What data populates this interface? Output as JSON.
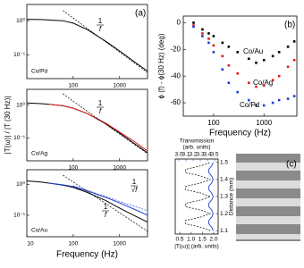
{
  "chart_data": [
    {
      "type": "line",
      "panel_label": "(a)",
      "ylabel": "|T(ω)| / |T (30 Hz)|",
      "xlog": true,
      "ylog": true,
      "xlim": [
        10,
        4000
      ],
      "ylim": [
        0.02,
        3
      ],
      "xticks": [
        100,
        1000
      ],
      "yticks": [
        {
          "value": 1,
          "label": "10⁰"
        },
        {
          "value": 0.1,
          "label": "10⁻¹"
        }
      ],
      "sample_label": "Co/Pd",
      "sample_color": "#000000",
      "fractions": [
        {
          "numerator": "1",
          "denominator": "f"
        }
      ],
      "x": [
        10,
        20,
        30,
        60,
        100,
        200,
        500,
        1000,
        2000,
        4000
      ],
      "series": [
        {
          "color": "#000000",
          "dashed": false,
          "values": [
            1.1,
            1.08,
            1.05,
            1,
            0.85,
            0.55,
            0.25,
            0.13,
            0.065,
            0.033
          ]
        },
        {
          "color": "#000000",
          "dashed": true,
          "values": [
            null,
            null,
            null,
            2,
            1.2,
            0.6,
            0.24,
            0.12,
            0.06,
            0.03
          ]
        }
      ]
    },
    {
      "type": "line",
      "xlog": true,
      "ylog": true,
      "xlim": [
        10,
        4000
      ],
      "ylim": [
        0.02,
        3
      ],
      "xticks": [
        100,
        1000
      ],
      "yticks": [
        {
          "value": 1,
          "label": "10⁰"
        },
        {
          "value": 0.1,
          "label": "10⁻¹"
        }
      ],
      "sample_label": "Co/Ag",
      "sample_color": "#e41a1c",
      "fractions": [
        {
          "numerator": "1",
          "denominator": "f"
        }
      ],
      "x": [
        10,
        20,
        30,
        60,
        100,
        200,
        500,
        1000,
        2000,
        4000
      ],
      "series": [
        {
          "color": "#000000",
          "dashed": false,
          "values": [
            1.15,
            1.1,
            1.05,
            0.95,
            0.8,
            0.55,
            0.27,
            0.14,
            0.07,
            0.035
          ]
        },
        {
          "color": "#e41a1c",
          "dashed": false,
          "values": [
            null,
            null,
            1.05,
            0.95,
            0.8,
            0.55,
            0.28,
            0.15,
            0.08,
            0.04
          ]
        },
        {
          "color": "#000000",
          "dashed": true,
          "values": [
            null,
            null,
            null,
            2.2,
            1.3,
            0.65,
            0.26,
            0.13,
            0.065,
            0.033
          ]
        }
      ]
    },
    {
      "type": "line",
      "xlabel": "Frequency (Hz)",
      "xlog": true,
      "ylog": true,
      "xlim": [
        10,
        4000
      ],
      "ylim": [
        0.02,
        3
      ],
      "xticks": [
        10,
        100,
        1000
      ],
      "yticks": [
        {
          "value": 1,
          "label": "10⁰"
        },
        {
          "value": 0.1,
          "label": "10⁻¹"
        }
      ],
      "sample_label": "Co/Au",
      "sample_color": "#1f3fd0",
      "fractions": [
        {
          "numerator": "1",
          "denominator": "f"
        },
        {
          "numerator": "1",
          "denominator": "√f"
        }
      ],
      "x": [
        10,
        20,
        30,
        60,
        100,
        200,
        500,
        1000,
        2000,
        4000
      ],
      "series": [
        {
          "color": "#000000",
          "dashed": false,
          "values": [
            1.3,
            1.2,
            1.1,
            0.95,
            0.8,
            0.55,
            0.3,
            0.17,
            0.1,
            0.06
          ]
        },
        {
          "color": "#1f3fd0",
          "dashed": false,
          "values": [
            null,
            null,
            1.1,
            0.97,
            0.85,
            0.62,
            0.38,
            0.25,
            0.16,
            0.1
          ]
        },
        {
          "color": "#1f3fd0",
          "dashed": true,
          "values": [
            null,
            null,
            null,
            null,
            0.9,
            0.64,
            0.4,
            0.28,
            0.2,
            0.14
          ]
        },
        {
          "color": "#000000",
          "dashed": true,
          "values": [
            null,
            null,
            null,
            2,
            1.2,
            0.6,
            0.24,
            0.12,
            0.06,
            0.03
          ]
        }
      ]
    },
    {
      "type": "scatter",
      "panel_label": "(b)",
      "xlabel": "Frequency (Hz)",
      "ylabel": "ϕ (f) - ϕ(30 Hz) (deg)",
      "xlog": true,
      "xlim": [
        25,
        4500
      ],
      "ylim": [
        -70,
        5
      ],
      "xticks": [
        100,
        1000
      ],
      "yticks": [
        0,
        -20,
        -40,
        -60
      ],
      "x": [
        40,
        60,
        80,
        100,
        150,
        200,
        300,
        500,
        700,
        1000,
        1500,
        2000,
        3000,
        4000
      ],
      "series": [
        {
          "name": "Co/Au",
          "color": "#000000",
          "values": [
            0,
            -5,
            -8,
            -10,
            -15,
            -18,
            -22,
            -27,
            -30,
            -28,
            -25,
            -22,
            -18,
            -14
          ]
        },
        {
          "name": "Co/Ag",
          "color": "#e41a1c",
          "values": [
            -2,
            -8,
            -12,
            -17,
            -25,
            -32,
            -38,
            -45,
            -48,
            -47,
            -43,
            -40,
            -33,
            -28
          ]
        },
        {
          "name": "Co/Pd",
          "color": "#1f3fd0",
          "values": [
            -3,
            -10,
            -15,
            -22,
            -35,
            -45,
            -52,
            -58,
            -62,
            -62,
            -60,
            -58,
            -57,
            -55
          ]
        }
      ]
    },
    {
      "type": "profile",
      "panel_label": "(c)",
      "xlabel": "|T(ω)| (arb. units)",
      "x2label": [
        "Transmission",
        "(arb. units)"
      ],
      "ylabel": "Distance (mm)",
      "xlim": [
        0.3,
        2.2
      ],
      "xticks": [
        0.5,
        {
          "value": 1,
          "label": "1.0"
        },
        1.5,
        {
          "value": 2,
          "label": "2.0"
        }
      ],
      "x2lim": [
        2.95,
        3.55
      ],
      "x2ticks": [
        {
          "value": 3,
          "label": "3.0"
        },
        3.1,
        3.2,
        3.3,
        3.4,
        3.5
      ],
      "ylim": [
        1.08,
        1.52
      ],
      "yticks": [
        1.1,
        1.2,
        1.3,
        1.4,
        1.5
      ],
      "y": [
        1.1,
        1.12,
        1.14,
        1.16,
        1.18,
        1.2,
        1.22,
        1.24,
        1.26,
        1.28,
        1.3,
        1.32,
        1.34,
        1.36,
        1.38,
        1.4,
        1.42,
        1.44,
        1.46,
        1.48,
        1.5
      ],
      "series": [
        {
          "color": "#000000",
          "dashed": true,
          "axis": "x",
          "values": [
            1.85,
            1.44,
            0.76,
            0.76,
            1.44,
            1.85,
            1.44,
            0.76,
            0.76,
            1.44,
            1.85,
            1.44,
            0.76,
            0.76,
            1.44,
            1.85,
            1.44,
            0.76,
            0.76,
            1.44,
            1.85
          ]
        },
        {
          "color": "#1f3fd0",
          "dashed": false,
          "axis": "x2",
          "values": [
            3.48,
            3.46,
            3.42,
            3.42,
            3.46,
            3.48,
            3.46,
            3.42,
            3.42,
            3.46,
            3.48,
            3.46,
            3.42,
            3.42,
            3.46,
            3.48,
            3.46,
            3.42,
            3.42,
            3.46,
            3.48
          ]
        }
      ]
    }
  ]
}
